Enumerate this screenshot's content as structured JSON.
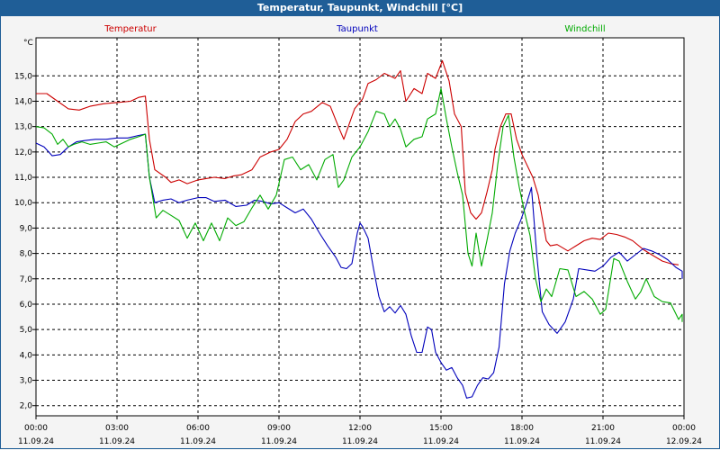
{
  "window": {
    "title": "Temperatur, Taupunkt, Windchill [°C]"
  },
  "chart_data": {
    "type": "line",
    "title": "Temperatur, Taupunkt, Windchill [°C]",
    "y_unit": "°C",
    "ylim": [
      1.6,
      16.5
    ],
    "y_ticks": [
      "2,0",
      "3,0",
      "4,0",
      "5,0",
      "6,0",
      "7,0",
      "8,0",
      "9,0",
      "10,0",
      "11,0",
      "12,0",
      "13,0",
      "14,0",
      "15,0"
    ],
    "xlim": [
      0,
      24
    ],
    "x_ticks": [
      {
        "time": "00:00",
        "date": "11.09.24"
      },
      {
        "time": "03:00",
        "date": "11.09.24"
      },
      {
        "time": "06:00",
        "date": "11.09.24"
      },
      {
        "time": "09:00",
        "date": "11.09.24"
      },
      {
        "time": "12:00",
        "date": "11.09.24"
      },
      {
        "time": "15:00",
        "date": "11.09.24"
      },
      {
        "time": "18:00",
        "date": "11.09.24"
      },
      {
        "time": "21:00",
        "date": "11.09.24"
      },
      {
        "time": "00:00",
        "date": "12.09.24"
      }
    ],
    "grid": true,
    "legend_position": "top",
    "series": [
      {
        "name": "Temperatur",
        "color": "#cc0000",
        "points": [
          [
            0,
            14.3
          ],
          [
            0.4,
            14.3
          ],
          [
            0.8,
            14.0
          ],
          [
            1.2,
            13.7
          ],
          [
            1.6,
            13.65
          ],
          [
            2.0,
            13.8
          ],
          [
            2.5,
            13.9
          ],
          [
            3.0,
            13.95
          ],
          [
            3.5,
            14.0
          ],
          [
            3.8,
            14.15
          ],
          [
            4.05,
            14.2
          ],
          [
            4.2,
            12.5
          ],
          [
            4.4,
            11.3
          ],
          [
            4.8,
            11.0
          ],
          [
            5.0,
            10.8
          ],
          [
            5.3,
            10.9
          ],
          [
            5.6,
            10.75
          ],
          [
            6.0,
            10.9
          ],
          [
            6.3,
            10.95
          ],
          [
            6.6,
            11.0
          ],
          [
            7.0,
            10.95
          ],
          [
            7.3,
            11.05
          ],
          [
            7.6,
            11.1
          ],
          [
            8.0,
            11.3
          ],
          [
            8.3,
            11.8
          ],
          [
            8.7,
            12.0
          ],
          [
            9.0,
            12.1
          ],
          [
            9.3,
            12.5
          ],
          [
            9.6,
            13.2
          ],
          [
            9.9,
            13.5
          ],
          [
            10.2,
            13.6
          ],
          [
            10.6,
            13.95
          ],
          [
            10.9,
            13.8
          ],
          [
            11.2,
            13.0
          ],
          [
            11.4,
            12.5
          ],
          [
            11.6,
            13.1
          ],
          [
            11.8,
            13.7
          ],
          [
            12.1,
            14.1
          ],
          [
            12.3,
            14.7
          ],
          [
            12.6,
            14.85
          ],
          [
            12.9,
            15.1
          ],
          [
            13.1,
            15.0
          ],
          [
            13.3,
            14.9
          ],
          [
            13.5,
            15.2
          ],
          [
            13.7,
            14.0
          ],
          [
            14.0,
            14.5
          ],
          [
            14.3,
            14.3
          ],
          [
            14.5,
            15.1
          ],
          [
            14.8,
            14.9
          ],
          [
            15.05,
            15.6
          ],
          [
            15.3,
            14.8
          ],
          [
            15.5,
            13.5
          ],
          [
            15.75,
            13.0
          ],
          [
            15.9,
            10.4
          ],
          [
            16.1,
            9.6
          ],
          [
            16.3,
            9.35
          ],
          [
            16.5,
            9.6
          ],
          [
            16.7,
            10.4
          ],
          [
            16.9,
            11.3
          ],
          [
            17.0,
            12.1
          ],
          [
            17.2,
            13.0
          ],
          [
            17.4,
            13.5
          ],
          [
            17.6,
            13.5
          ],
          [
            17.8,
            12.5
          ],
          [
            18.0,
            11.9
          ],
          [
            18.4,
            11.0
          ],
          [
            18.6,
            10.3
          ],
          [
            18.9,
            8.5
          ],
          [
            19.05,
            8.3
          ],
          [
            19.3,
            8.35
          ],
          [
            19.7,
            8.1
          ],
          [
            20.0,
            8.3
          ],
          [
            20.3,
            8.5
          ],
          [
            20.6,
            8.6
          ],
          [
            20.9,
            8.55
          ],
          [
            21.2,
            8.8
          ],
          [
            21.5,
            8.75
          ],
          [
            21.8,
            8.65
          ],
          [
            22.1,
            8.5
          ],
          [
            22.5,
            8.15
          ],
          [
            22.8,
            7.95
          ],
          [
            23.2,
            7.7
          ],
          [
            23.5,
            7.6
          ],
          [
            23.8,
            7.55
          ]
        ]
      },
      {
        "name": "Taupunkt",
        "color": "#0000bb",
        "points": [
          [
            0,
            12.35
          ],
          [
            0.3,
            12.2
          ],
          [
            0.6,
            11.85
          ],
          [
            0.9,
            11.9
          ],
          [
            1.2,
            12.2
          ],
          [
            1.5,
            12.4
          ],
          [
            1.8,
            12.45
          ],
          [
            2.2,
            12.5
          ],
          [
            2.6,
            12.5
          ],
          [
            3.0,
            12.55
          ],
          [
            3.4,
            12.55
          ],
          [
            3.8,
            12.65
          ],
          [
            4.05,
            12.7
          ],
          [
            4.2,
            11.0
          ],
          [
            4.4,
            10.0
          ],
          [
            4.7,
            10.1
          ],
          [
            5.0,
            10.15
          ],
          [
            5.3,
            10.0
          ],
          [
            5.6,
            10.1
          ],
          [
            6.0,
            10.2
          ],
          [
            6.3,
            10.2
          ],
          [
            6.6,
            10.05
          ],
          [
            7.0,
            10.1
          ],
          [
            7.4,
            9.85
          ],
          [
            7.8,
            9.9
          ],
          [
            8.1,
            10.1
          ],
          [
            8.4,
            10.05
          ],
          [
            8.7,
            9.95
          ],
          [
            9.0,
            10.0
          ],
          [
            9.3,
            9.8
          ],
          [
            9.6,
            9.6
          ],
          [
            9.9,
            9.75
          ],
          [
            10.2,
            9.35
          ],
          [
            10.5,
            8.8
          ],
          [
            10.8,
            8.3
          ],
          [
            11.1,
            7.85
          ],
          [
            11.3,
            7.45
          ],
          [
            11.5,
            7.4
          ],
          [
            11.7,
            7.6
          ],
          [
            11.9,
            8.8
          ],
          [
            12.0,
            9.2
          ],
          [
            12.1,
            9.05
          ],
          [
            12.3,
            8.6
          ],
          [
            12.5,
            7.4
          ],
          [
            12.7,
            6.3
          ],
          [
            12.9,
            5.7
          ],
          [
            13.1,
            5.9
          ],
          [
            13.3,
            5.65
          ],
          [
            13.5,
            5.95
          ],
          [
            13.7,
            5.6
          ],
          [
            13.9,
            4.75
          ],
          [
            14.1,
            4.1
          ],
          [
            14.3,
            4.1
          ],
          [
            14.5,
            5.1
          ],
          [
            14.65,
            5.0
          ],
          [
            14.8,
            4.1
          ],
          [
            15.0,
            3.7
          ],
          [
            15.2,
            3.4
          ],
          [
            15.4,
            3.5
          ],
          [
            15.6,
            3.1
          ],
          [
            15.8,
            2.8
          ],
          [
            15.95,
            2.3
          ],
          [
            16.15,
            2.35
          ],
          [
            16.35,
            2.8
          ],
          [
            16.55,
            3.1
          ],
          [
            16.75,
            3.05
          ],
          [
            16.95,
            3.3
          ],
          [
            17.15,
            4.3
          ],
          [
            17.35,
            6.8
          ],
          [
            17.55,
            8.1
          ],
          [
            17.75,
            8.8
          ],
          [
            17.95,
            9.3
          ],
          [
            18.15,
            9.9
          ],
          [
            18.35,
            10.6
          ],
          [
            18.55,
            7.9
          ],
          [
            18.75,
            5.7
          ],
          [
            19.0,
            5.2
          ],
          [
            19.3,
            4.85
          ],
          [
            19.6,
            5.3
          ],
          [
            19.9,
            6.2
          ],
          [
            20.1,
            7.4
          ],
          [
            20.4,
            7.35
          ],
          [
            20.7,
            7.3
          ],
          [
            21.0,
            7.5
          ],
          [
            21.3,
            7.85
          ],
          [
            21.6,
            8.05
          ],
          [
            21.9,
            7.7
          ],
          [
            22.2,
            7.95
          ],
          [
            22.5,
            8.2
          ],
          [
            22.8,
            8.1
          ],
          [
            23.1,
            7.95
          ],
          [
            23.4,
            7.75
          ],
          [
            23.7,
            7.45
          ],
          [
            24.0,
            7.3
          ],
          [
            24.3,
            7.15
          ],
          [
            24.6,
            7.0
          ]
        ]
      },
      {
        "name": "Windchill",
        "color": "#00aa00",
        "points": [
          [
            0,
            13.0
          ],
          [
            0.3,
            12.95
          ],
          [
            0.6,
            12.7
          ],
          [
            0.8,
            12.3
          ],
          [
            1.0,
            12.5
          ],
          [
            1.2,
            12.2
          ],
          [
            1.4,
            12.3
          ],
          [
            1.7,
            12.4
          ],
          [
            2.0,
            12.3
          ],
          [
            2.3,
            12.35
          ],
          [
            2.6,
            12.4
          ],
          [
            2.9,
            12.2
          ],
          [
            3.2,
            12.35
          ],
          [
            3.5,
            12.5
          ],
          [
            3.8,
            12.6
          ],
          [
            4.05,
            12.7
          ],
          [
            4.2,
            11.0
          ],
          [
            4.45,
            9.4
          ],
          [
            4.7,
            9.7
          ],
          [
            5.0,
            9.5
          ],
          [
            5.3,
            9.3
          ],
          [
            5.6,
            8.6
          ],
          [
            5.9,
            9.2
          ],
          [
            6.2,
            8.5
          ],
          [
            6.5,
            9.2
          ],
          [
            6.8,
            8.5
          ],
          [
            7.1,
            9.4
          ],
          [
            7.4,
            9.1
          ],
          [
            7.7,
            9.25
          ],
          [
            8.0,
            9.8
          ],
          [
            8.3,
            10.3
          ],
          [
            8.6,
            9.75
          ],
          [
            8.9,
            10.3
          ],
          [
            9.2,
            11.7
          ],
          [
            9.5,
            11.8
          ],
          [
            9.8,
            11.3
          ],
          [
            10.1,
            11.5
          ],
          [
            10.4,
            10.9
          ],
          [
            10.7,
            11.7
          ],
          [
            11.0,
            11.9
          ],
          [
            11.2,
            10.6
          ],
          [
            11.4,
            10.9
          ],
          [
            11.7,
            11.8
          ],
          [
            12.0,
            12.2
          ],
          [
            12.3,
            12.8
          ],
          [
            12.6,
            13.6
          ],
          [
            12.9,
            13.5
          ],
          [
            13.1,
            13.0
          ],
          [
            13.3,
            13.3
          ],
          [
            13.5,
            12.9
          ],
          [
            13.7,
            12.2
          ],
          [
            14.0,
            12.5
          ],
          [
            14.3,
            12.6
          ],
          [
            14.5,
            13.3
          ],
          [
            14.8,
            13.5
          ],
          [
            15.0,
            14.5
          ],
          [
            15.2,
            13.3
          ],
          [
            15.4,
            12.2
          ],
          [
            15.6,
            11.2
          ],
          [
            15.8,
            10.3
          ],
          [
            16.0,
            8.0
          ],
          [
            16.15,
            7.5
          ],
          [
            16.3,
            8.8
          ],
          [
            16.5,
            7.5
          ],
          [
            16.7,
            8.5
          ],
          [
            16.9,
            9.6
          ],
          [
            17.1,
            11.5
          ],
          [
            17.3,
            13.0
          ],
          [
            17.5,
            13.45
          ],
          [
            17.7,
            11.8
          ],
          [
            17.9,
            10.6
          ],
          [
            18.1,
            9.6
          ],
          [
            18.3,
            8.7
          ],
          [
            18.5,
            7.0
          ],
          [
            18.7,
            6.1
          ],
          [
            18.9,
            6.6
          ],
          [
            19.1,
            6.3
          ],
          [
            19.4,
            7.4
          ],
          [
            19.7,
            7.35
          ],
          [
            20.0,
            6.3
          ],
          [
            20.3,
            6.5
          ],
          [
            20.6,
            6.2
          ],
          [
            20.9,
            5.6
          ],
          [
            21.1,
            5.8
          ],
          [
            21.4,
            7.8
          ],
          [
            21.6,
            7.7
          ],
          [
            21.9,
            6.9
          ],
          [
            22.2,
            6.2
          ],
          [
            22.4,
            6.5
          ],
          [
            22.6,
            7.0
          ],
          [
            22.9,
            6.3
          ],
          [
            23.2,
            6.1
          ],
          [
            23.5,
            6.05
          ],
          [
            23.8,
            5.4
          ],
          [
            24.1,
            5.6
          ],
          [
            24.4,
            5.4
          ],
          [
            24.6,
            5.3
          ]
        ]
      }
    ]
  }
}
